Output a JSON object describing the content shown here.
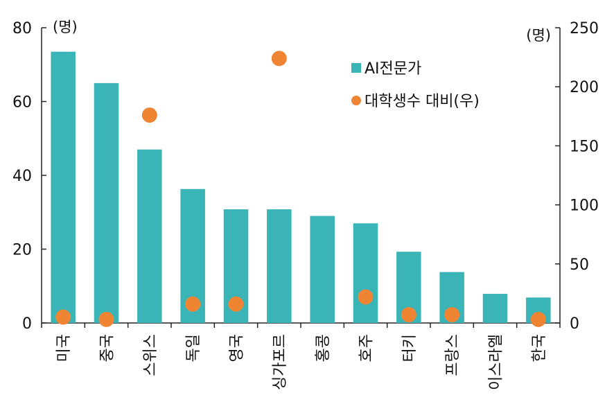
{
  "chart_data": {
    "type": "bar",
    "categories": [
      "미국",
      "중국",
      "스위스",
      "독일",
      "영국",
      "싱가포르",
      "홍콩",
      "호주",
      "터키",
      "프랑스",
      "이스라엘",
      "한국"
    ],
    "series": [
      {
        "name": "AI전문가",
        "type": "bar",
        "axis": "left",
        "color": "#3bb4b8",
        "values": [
          73.5,
          65,
          47,
          36.3,
          30.8,
          30.8,
          29,
          27,
          19.3,
          13.8,
          7.9,
          6.9
        ]
      },
      {
        "name": "대학생수 대비(우)",
        "type": "scatter",
        "axis": "right",
        "color": "#ef8533",
        "values": [
          5,
          3,
          176,
          16,
          16,
          224,
          null,
          22,
          7,
          7,
          null,
          3
        ]
      }
    ],
    "y_left": {
      "unit": "(명)",
      "ylim": [
        0,
        80
      ],
      "ticks": [
        "0",
        "20",
        "40",
        "60",
        "80"
      ]
    },
    "y_right": {
      "unit": "(명)",
      "ylim": [
        0,
        250
      ],
      "ticks": [
        "0",
        "50",
        "100",
        "150",
        "200",
        "250"
      ]
    },
    "legend": {
      "position": "top-right",
      "labels": [
        "AI전문가",
        "대학생수 대비(우)"
      ]
    },
    "title": "",
    "xlabel": "",
    "ylabel": ""
  }
}
